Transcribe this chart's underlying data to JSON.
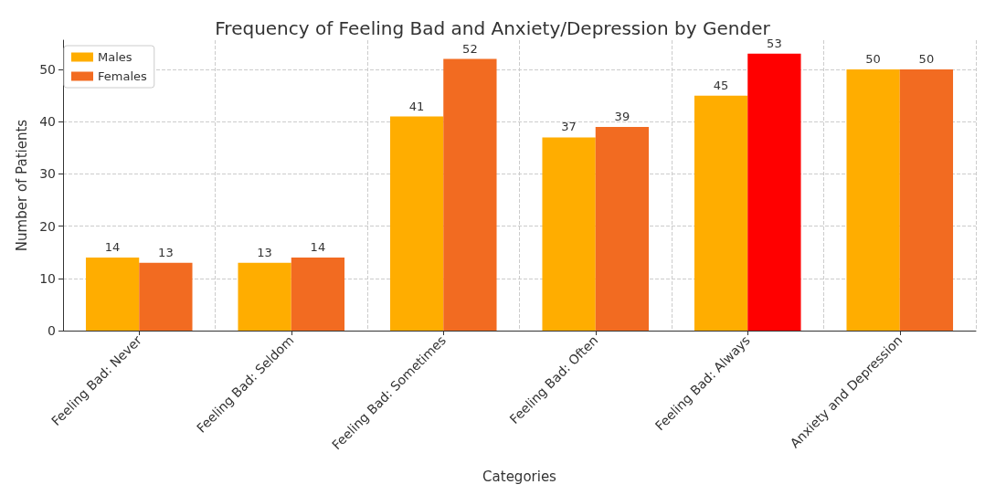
{
  "chart_data": {
    "type": "bar",
    "title": "Frequency of Feeling Bad and Anxiety/Depression by Gender",
    "xlabel": "Categories",
    "ylabel": "Number of Patients",
    "categories": [
      "Feeling Bad: Never",
      "Feeling Bad: Seldom",
      "Feeling Bad: Sometimes",
      "Feeling Bad: Often",
      "Feeling Bad: Always",
      "Anxiety and Depression"
    ],
    "series": [
      {
        "name": "Males",
        "color": "#ffad00",
        "values": [
          14,
          13,
          41,
          37,
          45,
          50
        ]
      },
      {
        "name": "Females",
        "color": "#f26b21",
        "colors": [
          "#f26b21",
          "#f26b21",
          "#f26b21",
          "#f26b21",
          "#ff0000",
          "#f26b21"
        ],
        "values": [
          13,
          14,
          52,
          39,
          53,
          50
        ]
      }
    ],
    "ylim": [
      0,
      55.6
    ],
    "yticks": [
      0,
      10,
      20,
      30,
      40,
      50
    ],
    "grid": true,
    "legend": "top left",
    "data_labels": true
  }
}
